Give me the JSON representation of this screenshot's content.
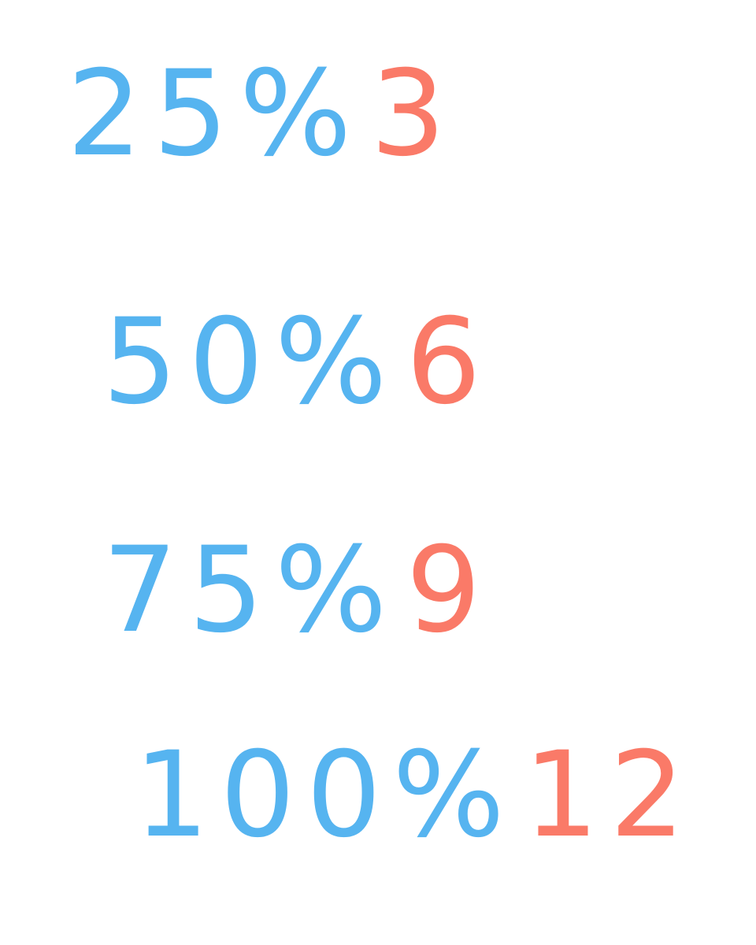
{
  "colors": {
    "percent": "#56b4f0",
    "count": "#fa7a68"
  },
  "rows": [
    {
      "percent": "25%",
      "count": "3"
    },
    {
      "percent": "50%",
      "count": "6"
    },
    {
      "percent": "75%",
      "count": "9"
    },
    {
      "percent": "100%",
      "count": "12"
    }
  ]
}
